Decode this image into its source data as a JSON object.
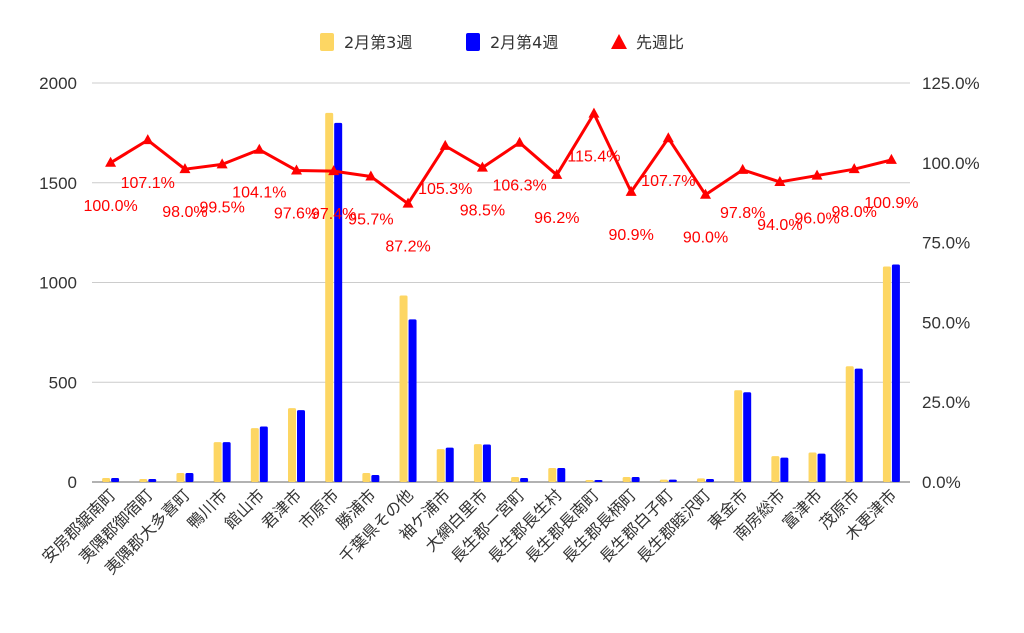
{
  "chart_data": {
    "type": "bar",
    "categories": [
      "安房郡鋸南町",
      "夷隅郡御宿町",
      "夷隅郡大多喜町",
      "鴨川市",
      "館山市",
      "君津市",
      "市原市",
      "勝浦市",
      "千葉県その他",
      "袖ケ浦市",
      "大網白里市",
      "長生郡一宮町",
      "長生郡長生村",
      "長生郡長南町",
      "長生郡長柄町",
      "長生郡白子町",
      "長生郡睦沢町",
      "東金市",
      "南房総市",
      "富津市",
      "茂原市",
      "木更津市"
    ],
    "series": [
      {
        "name": "2月第3週",
        "type": "bar",
        "axis": "left",
        "color": "#fdd663",
        "values": [
          20,
          15,
          45,
          200,
          270,
          370,
          1850,
          45,
          935,
          165,
          190,
          25,
          70,
          10,
          25,
          12,
          18,
          460,
          130,
          148,
          580,
          1080
        ]
      },
      {
        "name": "2月第4週",
        "type": "bar",
        "axis": "left",
        "color": "#0000ff",
        "values": [
          20,
          15,
          45,
          200,
          278,
          360,
          1800,
          35,
          815,
          172,
          188,
          20,
          70,
          10,
          25,
          12,
          15,
          450,
          122,
          142,
          568,
          1090
        ]
      },
      {
        "name": "先週比",
        "type": "line",
        "axis": "right",
        "color": "#ff0000",
        "values": [
          100.0,
          107.1,
          98.0,
          99.5,
          104.1,
          97.6,
          97.4,
          95.7,
          87.2,
          105.3,
          98.5,
          106.3,
          96.2,
          115.4,
          90.9,
          107.7,
          90.0,
          97.8,
          94.0,
          96.0,
          98.0,
          100.9
        ],
        "labels": [
          "100.0%",
          "107.1%",
          "98.0%",
          "99.5%",
          "104.1%",
          "97.6%",
          "97.4%",
          "95.7%",
          "87.2%",
          "105.3%",
          "98.5%",
          "106.3%",
          "96.2%",
          "115.4%",
          "90.9%",
          "107.7%",
          "90.0%",
          "97.8%",
          "94.0%",
          "96.0%",
          "98.0%",
          "100.9%"
        ]
      }
    ],
    "y_left": {
      "min": 0,
      "max": 2000,
      "ticks": [
        "0",
        "500",
        "1000",
        "1500",
        "2000"
      ]
    },
    "y_right": {
      "min": 0,
      "max": 125,
      "ticks": [
        "0.0%",
        "25.0%",
        "50.0%",
        "75.0%",
        "100.0%",
        "125.0%"
      ]
    },
    "grid": true,
    "legend_position": "top-center"
  }
}
